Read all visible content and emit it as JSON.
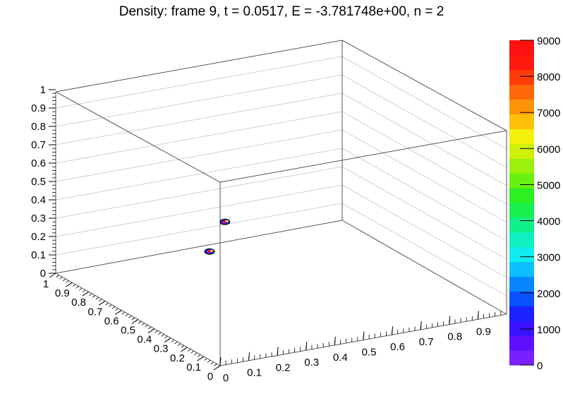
{
  "title": "Density: frame 9, t = 0.0517, E = -3.781748e+00, n = 2",
  "chart_data": {
    "type": "heatmap",
    "title": "Density: frame 9, t = 0.0517, E = -3.781748e+00, n = 2",
    "x_axis": {
      "range": [
        0,
        1
      ],
      "ticks": [
        "0",
        "0.1",
        "0.2",
        "0.3",
        "0.4",
        "0.5",
        "0.6",
        "0.7",
        "0.8",
        "0.9"
      ]
    },
    "y_axis": {
      "range": [
        0,
        1
      ],
      "ticks": [
        "0",
        "0.1",
        "0.2",
        "0.3",
        "0.4",
        "0.5",
        "0.6",
        "0.7",
        "0.8",
        "0.9",
        "1"
      ]
    },
    "z_axis": {
      "range": [
        0,
        1
      ],
      "ticks": [
        "0",
        "0.1",
        "0.2",
        "0.3",
        "0.4",
        "0.5",
        "0.6",
        "0.7",
        "0.8",
        "0.9",
        "1"
      ]
    },
    "colorbar": {
      "range": [
        0,
        9000
      ],
      "tick_labels": [
        "0",
        "1000",
        "2000",
        "3000",
        "4000",
        "5000",
        "6000",
        "7000",
        "8000",
        "9000"
      ],
      "colors": [
        "#7a1fff",
        "#6010ff",
        "#3a12ff",
        "#1a22ff",
        "#0a52ff",
        "#0886ff",
        "#0cc0ff",
        "#10ecf0",
        "#10f0c0",
        "#10f08a",
        "#18f050",
        "#2cf020",
        "#6af010",
        "#9cf00c",
        "#d0f00a",
        "#f4f00a",
        "#ffc00a",
        "#ff9408",
        "#ff6808",
        "#ff3c08",
        "#ff1a10",
        "#ff1010"
      ]
    },
    "blobs": [
      {
        "x": 0.25,
        "y": 0.5,
        "z": 0.3
      },
      {
        "x": 0.43,
        "y": 0.72,
        "z": 0.3
      }
    ],
    "grid": true
  }
}
